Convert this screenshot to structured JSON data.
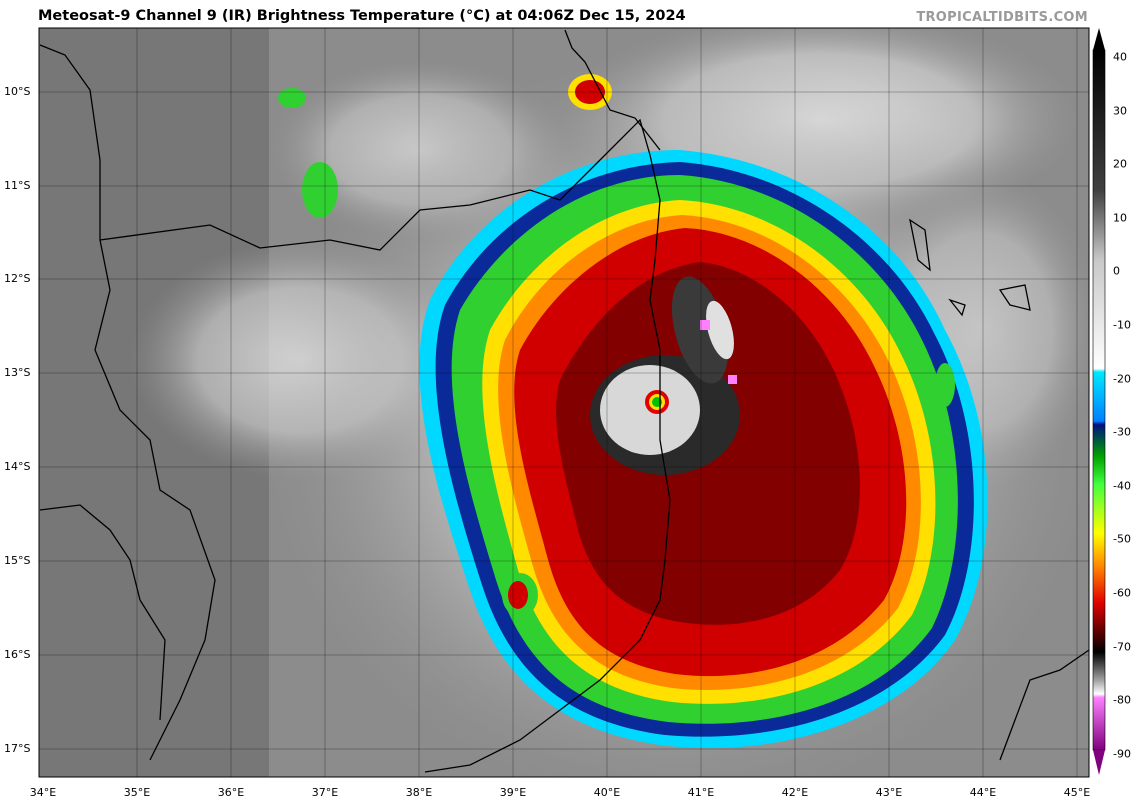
{
  "header": {
    "title": "Meteosat-9 Channel 9 (IR) Brightness Temperature (°C) at 04:06Z Dec 15, 2024",
    "credit": "TROPICALTIDBITS.COM"
  },
  "map": {
    "lon_range": [
      34,
      45.2
    ],
    "lat_range": [
      -17.3,
      -9.4
    ],
    "lat_labels": [
      "10°S",
      "11°S",
      "12°S",
      "13°S",
      "14°S",
      "15°S",
      "16°S",
      "17°S"
    ],
    "lon_labels": [
      "34°E",
      "35°E",
      "36°E",
      "37°E",
      "38°E",
      "39°E",
      "40°E",
      "41°E",
      "42°E",
      "43°E",
      "44°E",
      "45°E"
    ],
    "storm_eye": {
      "lon": 40.55,
      "lat": -13.3
    }
  },
  "colorbar": {
    "labels": [
      "40",
      "30",
      "20",
      "10",
      "0",
      "-10",
      "-20",
      "-30",
      "-40",
      "-50",
      "-60",
      "-70",
      "-80",
      "-90"
    ],
    "range": [
      -90,
      40
    ],
    "colors": {
      "grey_light": "#f0f0f0",
      "grey_dark": "#202020",
      "cyan": "#00e0ff",
      "blue": "#001080",
      "green": "#00c000",
      "yellow": "#ffe000",
      "orange": "#ff8000",
      "red": "#d00000",
      "dark_red": "#400000",
      "pink": "#ff80ff",
      "purple": "#800080"
    }
  }
}
